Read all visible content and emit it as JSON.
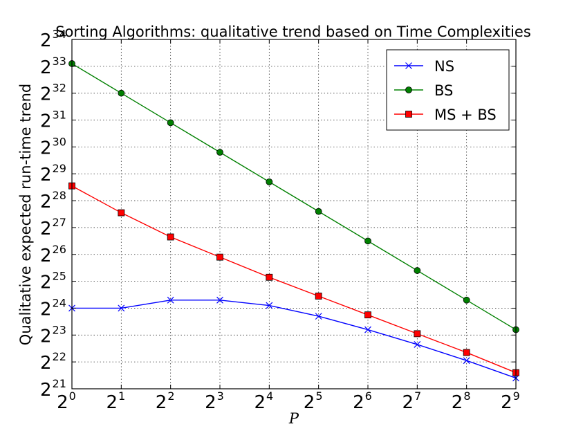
{
  "chart_data": {
    "type": "line",
    "title": "Sorting Algorithms: qualitative trend based on Time Complexities",
    "xlabel": "P",
    "ylabel": "Qualitative expected run-time trend",
    "x_scale": "log2",
    "y_scale": "log2",
    "x": [
      1,
      2,
      4,
      8,
      16,
      32,
      64,
      128,
      256,
      512
    ],
    "xlim": [
      1,
      512
    ],
    "ylim_log2": [
      21,
      34
    ],
    "x_ticks": [
      {
        "base": "2",
        "exp": "0"
      },
      {
        "base": "2",
        "exp": "1"
      },
      {
        "base": "2",
        "exp": "2"
      },
      {
        "base": "2",
        "exp": "3"
      },
      {
        "base": "2",
        "exp": "4"
      },
      {
        "base": "2",
        "exp": "5"
      },
      {
        "base": "2",
        "exp": "6"
      },
      {
        "base": "2",
        "exp": "7"
      },
      {
        "base": "2",
        "exp": "8"
      },
      {
        "base": "2",
        "exp": "9"
      }
    ],
    "y_ticks": [
      {
        "base": "2",
        "exp": "21"
      },
      {
        "base": "2",
        "exp": "22"
      },
      {
        "base": "2",
        "exp": "23"
      },
      {
        "base": "2",
        "exp": "24"
      },
      {
        "base": "2",
        "exp": "25"
      },
      {
        "base": "2",
        "exp": "26"
      },
      {
        "base": "2",
        "exp": "27"
      },
      {
        "base": "2",
        "exp": "28"
      },
      {
        "base": "2",
        "exp": "29"
      },
      {
        "base": "2",
        "exp": "30"
      },
      {
        "base": "2",
        "exp": "31"
      },
      {
        "base": "2",
        "exp": "32"
      },
      {
        "base": "2",
        "exp": "33"
      },
      {
        "base": "2",
        "exp": "34"
      }
    ],
    "grid": true,
    "legend": "top-right",
    "series": [
      {
        "name": "NS",
        "color": "#0000ff",
        "marker": "x",
        "y_log2": [
          24.0,
          24.0,
          24.3,
          24.3,
          24.1,
          23.7,
          23.2,
          22.65,
          22.05,
          21.4
        ]
      },
      {
        "name": "BS",
        "color": "#008000",
        "marker": "circle",
        "y_log2": [
          33.1,
          32.0,
          30.9,
          29.8,
          28.7,
          27.6,
          26.5,
          25.4,
          24.3,
          23.2
        ]
      },
      {
        "name": "MS + BS",
        "color": "#ff0000",
        "marker": "square",
        "y_log2": [
          28.55,
          27.55,
          26.65,
          25.9,
          25.15,
          24.45,
          23.75,
          23.05,
          22.35,
          21.6
        ]
      }
    ]
  }
}
